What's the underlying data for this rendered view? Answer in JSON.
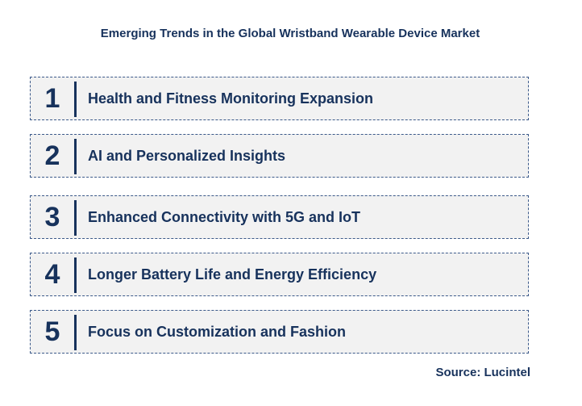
{
  "title": "Emerging Trends in the Global Wristband Wearable Device Market",
  "trends": [
    {
      "number": "1",
      "label": "Health and Fitness Monitoring Expansion"
    },
    {
      "number": "2",
      "label": "AI and Personalized Insights"
    },
    {
      "number": "3",
      "label": "Enhanced Connectivity with 5G and IoT"
    },
    {
      "number": "4",
      "label": "Longer Battery Life and Energy Efficiency"
    },
    {
      "number": "5",
      "label": "Focus on Customization and Fashion"
    }
  ],
  "source": "Source: Lucintel",
  "colors": {
    "text": "#17325c",
    "box_background": "#f2f2f2",
    "box_border": "#3c5a8a"
  }
}
